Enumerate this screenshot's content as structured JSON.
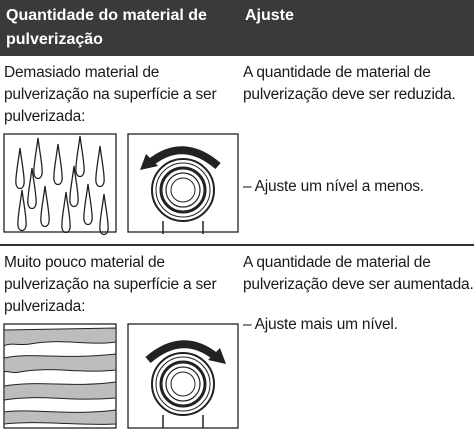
{
  "header": {
    "columns": [
      "Quantidade do material de pulverização",
      "Ajuste"
    ]
  },
  "rows": [
    {
      "condition": "Demasiado material de pulverização na superfície a ser pulverizada:",
      "adjustment": "A quantidade de material de pulverização deve ser reduzida.",
      "action": "–  Ajuste um nível a menos."
    },
    {
      "condition": "Muito pouco material de pulverização na superfície a ser pulverizada:",
      "adjustment": "A quantidade de material de pulverização deve ser aumentada.",
      "action": "–  Ajuste mais um nível."
    }
  ]
}
